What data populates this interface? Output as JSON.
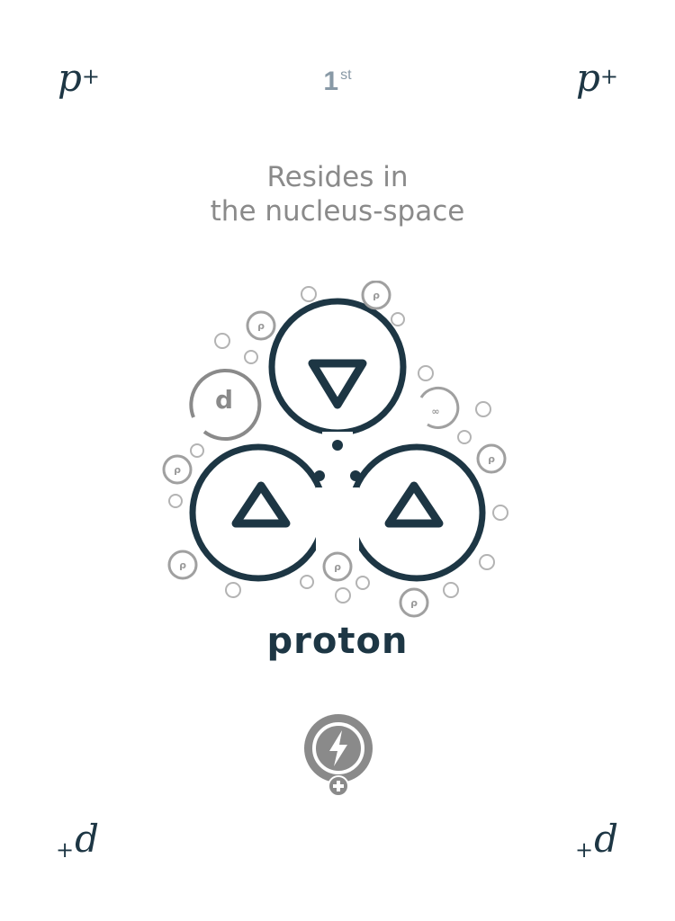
{
  "card": {
    "symbol": "p",
    "symbol_charge": "+",
    "reverse_symbol": "d",
    "reverse_prefix": "+",
    "rank_number": "1",
    "rank_suffix": "st",
    "subtitle_line1": "Resides in",
    "subtitle_line2": "the nucleus-space",
    "particle_name": "proton"
  },
  "colors": {
    "primary": "#1d3644",
    "grey": "#8a8a8a",
    "light_grey": "#b3b3b3",
    "rank": "#8899a6"
  },
  "icons": {
    "emblem": "proton-emblem-icon",
    "energy": "lightning-bolt-icon",
    "add": "plus-icon"
  }
}
